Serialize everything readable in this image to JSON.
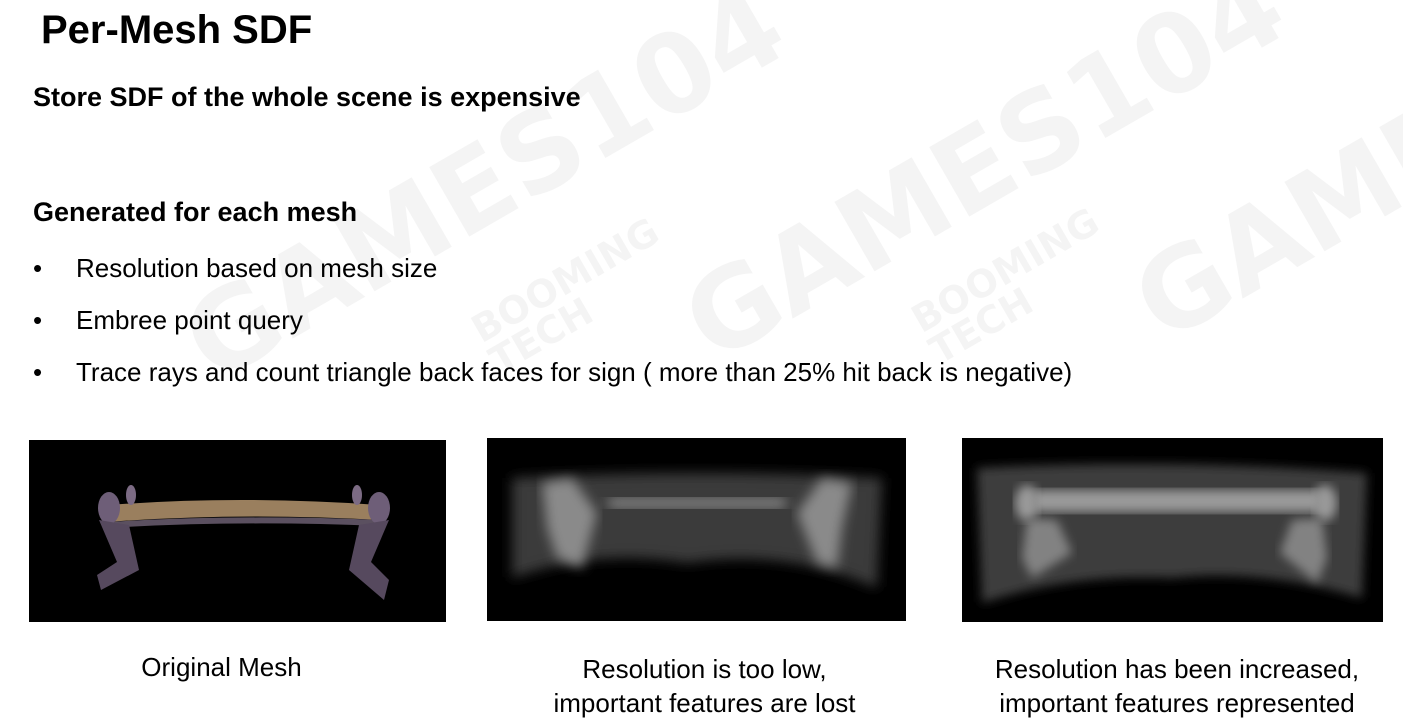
{
  "title": "Per-Mesh SDF",
  "subtitle1": "Store SDF of the whole scene is expensive",
  "subtitle2": "Generated for each mesh",
  "bullets": [
    "Resolution based on mesh size",
    "Embree point query",
    "Trace rays and count triangle back faces for sign ( more than 25% hit back is negative)"
  ],
  "figures": [
    {
      "caption": "Original Mesh"
    },
    {
      "caption_line1": "Resolution is too low,",
      "caption_line2": "important features are lost"
    },
    {
      "caption_line1": "Resolution has been increased,",
      "caption_line2": "important features represented"
    }
  ],
  "watermark": {
    "main": "GAMES104",
    "sub1": "BOOMING",
    "sub2": "TECH"
  }
}
